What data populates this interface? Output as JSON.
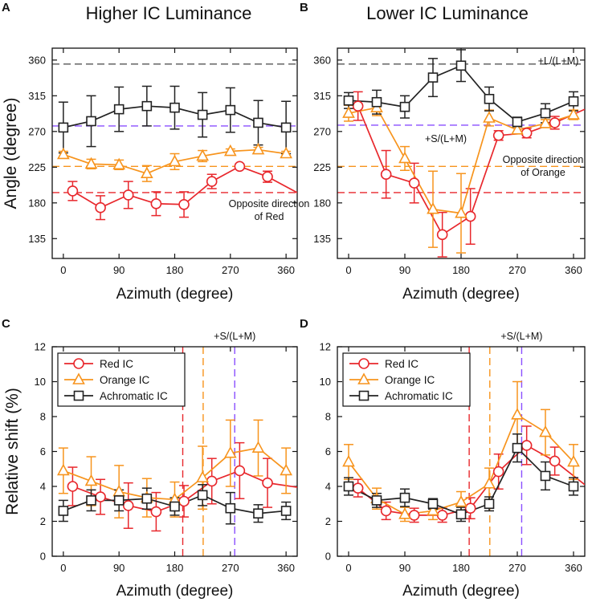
{
  "figure": {
    "colors": {
      "red": "#e8272c",
      "orange": "#f7941d",
      "black": "#222222",
      "purple": "#8a4fff",
      "gray": "#555555"
    }
  },
  "chart_data": [
    {
      "type": "line",
      "panel": "A",
      "title": "Higher IC Luminance",
      "xlabel": "Azimuth (degree)",
      "ylabel": "Angle (degree)",
      "xlim": [
        -18,
        378
      ],
      "ylim": [
        110,
        375
      ],
      "xticks": [
        0,
        90,
        180,
        270,
        360
      ],
      "yticks": [
        135,
        180,
        225,
        270,
        315,
        360
      ],
      "ref_lines": [
        {
          "y": 355,
          "color": "gray",
          "label": ""
        },
        {
          "y": 277,
          "color": "purple",
          "label": ""
        },
        {
          "y": 226,
          "color": "orange",
          "label": ""
        },
        {
          "y": 193,
          "color": "red",
          "label": ""
        }
      ],
      "annotations": [
        "Opposite direction",
        "of Red"
      ],
      "series": [
        {
          "name": "Red",
          "color": "red",
          "marker": "circle",
          "x": [
            15,
            60,
            105,
            150,
            195,
            240,
            285,
            330
          ],
          "y": [
            195,
            174,
            190,
            179,
            178,
            207,
            226,
            213
          ],
          "err": [
            12,
            15,
            17,
            15,
            16,
            9,
            3,
            7
          ],
          "tail": [
            [
              330,
              213
            ],
            [
              378,
              193
            ]
          ]
        },
        {
          "name": "Orange",
          "color": "orange",
          "marker": "triangle",
          "x": [
            0,
            45,
            90,
            135,
            180,
            225,
            270,
            315,
            360
          ],
          "y": [
            241,
            229,
            228,
            217,
            232,
            239,
            245,
            247,
            242
          ],
          "err": [
            4,
            6,
            6,
            10,
            10,
            7,
            3,
            3,
            3
          ]
        },
        {
          "name": "Achromatic",
          "color": "black",
          "marker": "square",
          "x": [
            0,
            45,
            90,
            135,
            180,
            225,
            270,
            315,
            360
          ],
          "y": [
            275,
            283,
            298,
            302,
            300,
            291,
            297,
            281,
            275
          ],
          "err": [
            32,
            32,
            28,
            25,
            27,
            28,
            28,
            28,
            33
          ]
        }
      ]
    },
    {
      "type": "line",
      "panel": "B",
      "title": "Lower IC Luminance",
      "xlabel": "Azimuth (degree)",
      "ylabel": "",
      "xlim": [
        -18,
        378
      ],
      "ylim": [
        110,
        375
      ],
      "xticks": [
        0,
        90,
        180,
        270,
        360
      ],
      "yticks": [
        135,
        180,
        225,
        270,
        315,
        360
      ],
      "ref_lines": [
        {
          "y": 355,
          "color": "gray",
          "label": "+L/(L+M)"
        },
        {
          "y": 278,
          "color": "purple",
          "label": "+S/(L+M)"
        },
        {
          "y": 226,
          "color": "orange",
          "label": ""
        },
        {
          "y": 193,
          "color": "red",
          "label": ""
        }
      ],
      "annotations": [
        "Opposite direction",
        "of Orange"
      ],
      "series": [
        {
          "name": "Red",
          "color": "red",
          "marker": "circle",
          "x": [
            15,
            60,
            105,
            150,
            195,
            240,
            285,
            330
          ],
          "y": [
            302,
            216,
            205,
            140,
            163,
            265,
            268,
            281
          ],
          "err": [
            18,
            30,
            25,
            28,
            35,
            6,
            6,
            8
          ],
          "tail": [
            [
              330,
              281
            ],
            [
              378,
              298
            ]
          ]
        },
        {
          "name": "Orange",
          "color": "orange",
          "marker": "triangle",
          "x": [
            0,
            45,
            90,
            135,
            180,
            225,
            270,
            315,
            360
          ],
          "y": [
            293,
            300,
            236,
            172,
            167,
            287,
            272,
            280,
            291
          ],
          "err": [
            10,
            10,
            15,
            48,
            50,
            10,
            4,
            5,
            6
          ]
        },
        {
          "name": "Achromatic",
          "color": "black",
          "marker": "square",
          "x": [
            0,
            45,
            90,
            135,
            180,
            225,
            270,
            315,
            360
          ],
          "y": [
            309,
            307,
            301,
            338,
            353,
            311,
            282,
            293,
            308
          ],
          "err": [
            10,
            15,
            14,
            24,
            20,
            15,
            6,
            12,
            12
          ]
        }
      ]
    },
    {
      "type": "line",
      "panel": "C",
      "title": "",
      "xlabel": "Azimuth (degree)",
      "ylabel": "Relative shift (%)",
      "xlim": [
        -18,
        378
      ],
      "ylim": [
        0,
        12
      ],
      "xticks": [
        0,
        90,
        180,
        270,
        360
      ],
      "yticks": [
        0,
        2,
        4,
        6,
        8,
        10,
        12
      ],
      "vref_lines": [
        {
          "x": 193,
          "color": "red"
        },
        {
          "x": 226,
          "color": "orange"
        },
        {
          "x": 277,
          "color": "purple"
        }
      ],
      "top_label": "+S/(L+M)",
      "legend": [
        "Red IC",
        "Orange IC",
        "Achromatic IC"
      ],
      "series": [
        {
          "name": "Red IC",
          "color": "red",
          "marker": "circle",
          "x": [
            15,
            60,
            105,
            150,
            195,
            240,
            285,
            330
          ],
          "y": [
            4.0,
            3.4,
            2.9,
            2.55,
            3.15,
            4.3,
            4.9,
            4.2
          ],
          "err": [
            1.1,
            1.0,
            1.3,
            1.1,
            0.9,
            1.3,
            1.6,
            1.4
          ],
          "tail": [
            [
              330,
              4.2
            ],
            [
              378,
              3.95
            ]
          ]
        },
        {
          "name": "Orange IC",
          "color": "orange",
          "marker": "triangle",
          "x": [
            0,
            45,
            90,
            135,
            180,
            225,
            270,
            315,
            360
          ],
          "y": [
            4.9,
            4.3,
            3.7,
            3.35,
            3.25,
            4.5,
            5.9,
            6.2,
            4.9
          ],
          "err": [
            1.3,
            1.4,
            1.5,
            1.1,
            1.0,
            1.8,
            1.9,
            1.6,
            1.3
          ]
        },
        {
          "name": "Achromatic IC",
          "color": "black",
          "marker": "square",
          "x": [
            0,
            45,
            90,
            135,
            180,
            225,
            270,
            315,
            360
          ],
          "y": [
            2.6,
            3.2,
            3.2,
            3.3,
            2.85,
            3.5,
            2.75,
            2.45,
            2.6
          ],
          "err": [
            0.6,
            0.6,
            0.6,
            0.6,
            0.5,
            0.6,
            0.9,
            0.5,
            0.5
          ]
        }
      ]
    },
    {
      "type": "line",
      "panel": "D",
      "title": "",
      "xlabel": "Azimuth (degree)",
      "ylabel": "",
      "xlim": [
        -18,
        378
      ],
      "ylim": [
        0,
        12
      ],
      "xticks": [
        0,
        90,
        180,
        270,
        360
      ],
      "yticks": [
        0,
        2,
        4,
        6,
        8,
        10,
        12
      ],
      "vref_lines": [
        {
          "x": 193,
          "color": "red"
        },
        {
          "x": 226,
          "color": "orange"
        },
        {
          "x": 277,
          "color": "purple"
        }
      ],
      "top_label": "+S/(L+M)",
      "legend": [
        "Red IC",
        "Orange IC",
        "Achromatic IC"
      ],
      "series": [
        {
          "name": "Red IC",
          "color": "red",
          "marker": "circle",
          "x": [
            15,
            60,
            105,
            150,
            195,
            240,
            285,
            330
          ],
          "y": [
            3.9,
            2.6,
            2.35,
            2.35,
            2.75,
            4.85,
            6.35,
            5.45
          ],
          "err": [
            0.5,
            0.5,
            0.4,
            0.4,
            0.6,
            1.0,
            1.1,
            0.8
          ],
          "tail": [
            [
              330,
              5.45
            ],
            [
              378,
              4.1
            ]
          ]
        },
        {
          "name": "Orange IC",
          "color": "orange",
          "marker": "triangle",
          "x": [
            0,
            45,
            90,
            135,
            180,
            225,
            270,
            315,
            360
          ],
          "y": [
            5.4,
            3.3,
            2.4,
            2.6,
            3.1,
            4.15,
            8.1,
            7.1,
            5.4
          ],
          "err": [
            1.0,
            0.6,
            0.4,
            0.5,
            0.6,
            0.9,
            1.9,
            1.3,
            1.0
          ]
        },
        {
          "name": "Achromatic IC",
          "color": "black",
          "marker": "square",
          "x": [
            0,
            45,
            90,
            135,
            180,
            225,
            270,
            315,
            360
          ],
          "y": [
            4.0,
            3.2,
            3.35,
            3.0,
            2.4,
            3.0,
            6.2,
            4.6,
            4.0
          ],
          "err": [
            0.5,
            0.4,
            0.5,
            0.3,
            0.4,
            0.4,
            0.8,
            0.8,
            0.5
          ]
        }
      ]
    }
  ]
}
